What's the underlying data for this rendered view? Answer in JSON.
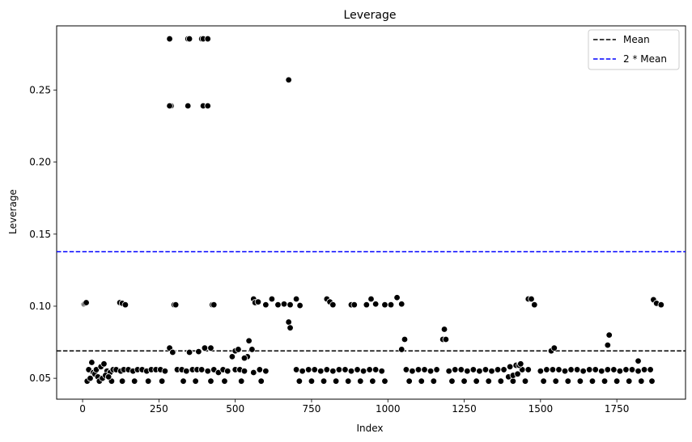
{
  "chart_data": {
    "type": "scatter",
    "title": "Leverage",
    "xlabel": "Index",
    "ylabel": "Leverage",
    "xlim": [
      -85,
      1975
    ],
    "ylim": [
      0.0355,
      0.2945
    ],
    "xticks": [
      0,
      250,
      500,
      750,
      1000,
      1250,
      1500,
      1750
    ],
    "xtick_labels": [
      "0",
      "250",
      "500",
      "750",
      "1000",
      "1250",
      "1500",
      "1750"
    ],
    "yticks": [
      0.05,
      0.1,
      0.15,
      0.2,
      0.25
    ],
    "ytick_labels": [
      "0.05",
      "0.10",
      "0.15",
      "0.20",
      "0.25"
    ],
    "grid": false,
    "legend_position": "top-right",
    "legend": [
      {
        "label": "Mean",
        "color": "#000000",
        "style": "dashed"
      },
      {
        "label": "2 * Mean",
        "color": "#0000ff",
        "style": "dashed"
      }
    ],
    "hlines": [
      {
        "name": "Mean",
        "y": 0.069,
        "color": "#000000"
      },
      {
        "name": "2 * Mean",
        "y": 0.1378,
        "color": "#0000ff"
      }
    ],
    "marker_color": "#000000",
    "marker_edge_color": "#ffffff",
    "x": [
      5,
      8,
      12,
      285,
      290,
      345,
      350,
      390,
      395,
      410,
      285,
      345,
      395,
      410,
      675,
      122,
      130,
      140,
      300,
      305,
      425,
      430,
      560,
      565,
      575,
      600,
      620,
      640,
      660,
      680,
      700,
      712,
      800,
      810,
      820,
      880,
      890,
      930,
      945,
      960,
      990,
      1010,
      1030,
      1045,
      1460,
      1470,
      1480,
      1870,
      1880,
      1895,
      285,
      295,
      380,
      400,
      420,
      350,
      540,
      555,
      500,
      510,
      490,
      530,
      545,
      675,
      680,
      1045,
      1055,
      1180,
      1185,
      1190,
      1535,
      1545,
      1720,
      1725,
      1820,
      20,
      30,
      35,
      40,
      45,
      50,
      60,
      70,
      80,
      90,
      100,
      110,
      125,
      135,
      150,
      165,
      180,
      195,
      210,
      225,
      240,
      255,
      270,
      310,
      325,
      340,
      360,
      375,
      390,
      410,
      430,
      445,
      460,
      475,
      500,
      515,
      530,
      560,
      580,
      600,
      700,
      720,
      740,
      760,
      780,
      800,
      820,
      840,
      860,
      880,
      900,
      920,
      940,
      960,
      980,
      1060,
      1080,
      1100,
      1120,
      1140,
      1160,
      1200,
      1220,
      1240,
      1260,
      1280,
      1300,
      1320,
      1340,
      1360,
      1380,
      1400,
      1420,
      1440,
      1460,
      1500,
      1520,
      1540,
      1560,
      1580,
      1600,
      1620,
      1640,
      1660,
      1680,
      1700,
      1720,
      1740,
      1760,
      1780,
      1800,
      1820,
      1840,
      1860,
      15,
      55,
      95,
      130,
      170,
      215,
      260,
      330,
      370,
      420,
      465,
      520,
      585,
      710,
      750,
      790,
      830,
      870,
      910,
      950,
      990,
      1070,
      1110,
      1150,
      1210,
      1250,
      1290,
      1330,
      1370,
      1410,
      1450,
      1510,
      1550,
      1590,
      1630,
      1670,
      1710,
      1750,
      1790,
      1830,
      1865,
      25,
      65,
      75,
      85,
      1395,
      1410,
      1425,
      1430,
      1435
    ],
    "y": [
      0.1015,
      0.102,
      0.1025,
      0.2855,
      0.239,
      0.2855,
      0.2855,
      0.2855,
      0.2855,
      0.2855,
      0.239,
      0.239,
      0.239,
      0.239,
      0.257,
      0.1025,
      0.102,
      0.101,
      0.101,
      0.101,
      0.101,
      0.101,
      0.105,
      0.1025,
      0.103,
      0.101,
      0.105,
      0.101,
      0.1015,
      0.101,
      0.105,
      0.1005,
      0.105,
      0.103,
      0.101,
      0.101,
      0.101,
      0.101,
      0.105,
      0.1015,
      0.101,
      0.101,
      0.106,
      0.1015,
      0.105,
      0.105,
      0.101,
      0.1045,
      0.102,
      0.101,
      0.071,
      0.068,
      0.0685,
      0.071,
      0.071,
      0.068,
      0.065,
      0.07,
      0.069,
      0.07,
      0.065,
      0.064,
      0.076,
      0.089,
      0.085,
      0.07,
      0.077,
      0.077,
      0.084,
      0.077,
      0.069,
      0.071,
      0.073,
      0.08,
      0.062,
      0.056,
      0.061,
      0.054,
      0.053,
      0.056,
      0.051,
      0.058,
      0.06,
      0.055,
      0.054,
      0.056,
      0.056,
      0.055,
      0.056,
      0.056,
      0.055,
      0.056,
      0.056,
      0.055,
      0.056,
      0.056,
      0.056,
      0.055,
      0.056,
      0.056,
      0.055,
      0.056,
      0.056,
      0.056,
      0.055,
      0.056,
      0.054,
      0.056,
      0.055,
      0.056,
      0.056,
      0.055,
      0.054,
      0.056,
      0.055,
      0.056,
      0.055,
      0.056,
      0.056,
      0.055,
      0.056,
      0.055,
      0.056,
      0.056,
      0.055,
      0.056,
      0.055,
      0.056,
      0.056,
      0.055,
      0.056,
      0.055,
      0.056,
      0.056,
      0.055,
      0.056,
      0.055,
      0.056,
      0.056,
      0.055,
      0.056,
      0.055,
      0.056,
      0.055,
      0.056,
      0.056,
      0.058,
      0.059,
      0.056,
      0.056,
      0.055,
      0.056,
      0.056,
      0.056,
      0.055,
      0.056,
      0.056,
      0.055,
      0.056,
      0.056,
      0.055,
      0.056,
      0.056,
      0.055,
      0.056,
      0.056,
      0.055,
      0.056,
      0.056,
      0.048,
      0.048,
      0.048,
      0.048,
      0.048,
      0.048,
      0.048,
      0.048,
      0.048,
      0.048,
      0.048,
      0.048,
      0.048,
      0.048,
      0.048,
      0.048,
      0.048,
      0.048,
      0.048,
      0.048,
      0.048,
      0.048,
      0.048,
      0.048,
      0.048,
      0.048,
      0.048,
      0.048,
      0.048,
      0.048,
      0.048,
      0.048,
      0.048,
      0.048,
      0.048,
      0.048,
      0.048,
      0.048,
      0.048,
      0.048,
      0.048,
      0.05,
      0.05,
      0.052,
      0.051,
      0.051,
      0.052,
      0.053,
      0.059,
      0.06
    ]
  }
}
